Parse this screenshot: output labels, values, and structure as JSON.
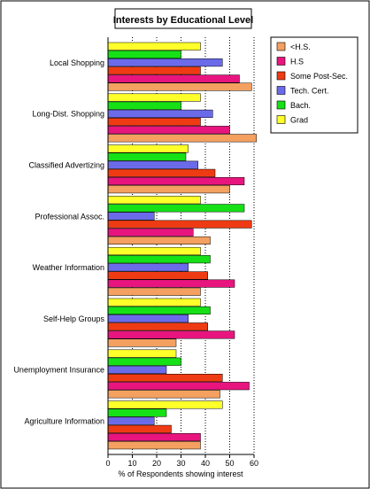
{
  "chart_data": {
    "type": "bar",
    "orientation": "horizontal",
    "title": "Interests by Educational Level",
    "xlabel": "% of Respondents showing interest",
    "ylabel": "",
    "xlim": [
      0,
      60
    ],
    "xticks": [
      0,
      10,
      20,
      30,
      40,
      50,
      60
    ],
    "grid": "vertical dotted lines at 10-unit intervals",
    "legend_position": "top-right",
    "categories": [
      "Local Shopping",
      "Long-Dist. Shopping",
      "Classified Advertizing",
      "Professional Assoc.",
      "Weather Information",
      "Self-Help Groups",
      "Unemployment Insurance",
      "Agriculture Information"
    ],
    "series": [
      {
        "name": "<H.S.",
        "color": "#f4a060",
        "values": [
          59,
          61,
          50,
          42,
          38,
          28,
          46,
          38
        ]
      },
      {
        "name": "H.S",
        "color": "#e8157f",
        "values": [
          54,
          50,
          56,
          35,
          52,
          52,
          58,
          38
        ]
      },
      {
        "name": "Some Post-Sec.",
        "color": "#ef3b13",
        "values": [
          38,
          38,
          44,
          59,
          41,
          41,
          47,
          26
        ]
      },
      {
        "name": "Tech. Cert.",
        "color": "#6b6bea",
        "values": [
          47,
          43,
          37,
          19,
          33,
          33,
          24,
          19
        ]
      },
      {
        "name": "Bach.",
        "color": "#16e016",
        "values": [
          30,
          30,
          32,
          56,
          42,
          42,
          30,
          24
        ]
      },
      {
        "name": "Grad",
        "color": "#ffff2a",
        "values": [
          38,
          38,
          33,
          38,
          38,
          38,
          28,
          47
        ]
      }
    ]
  }
}
